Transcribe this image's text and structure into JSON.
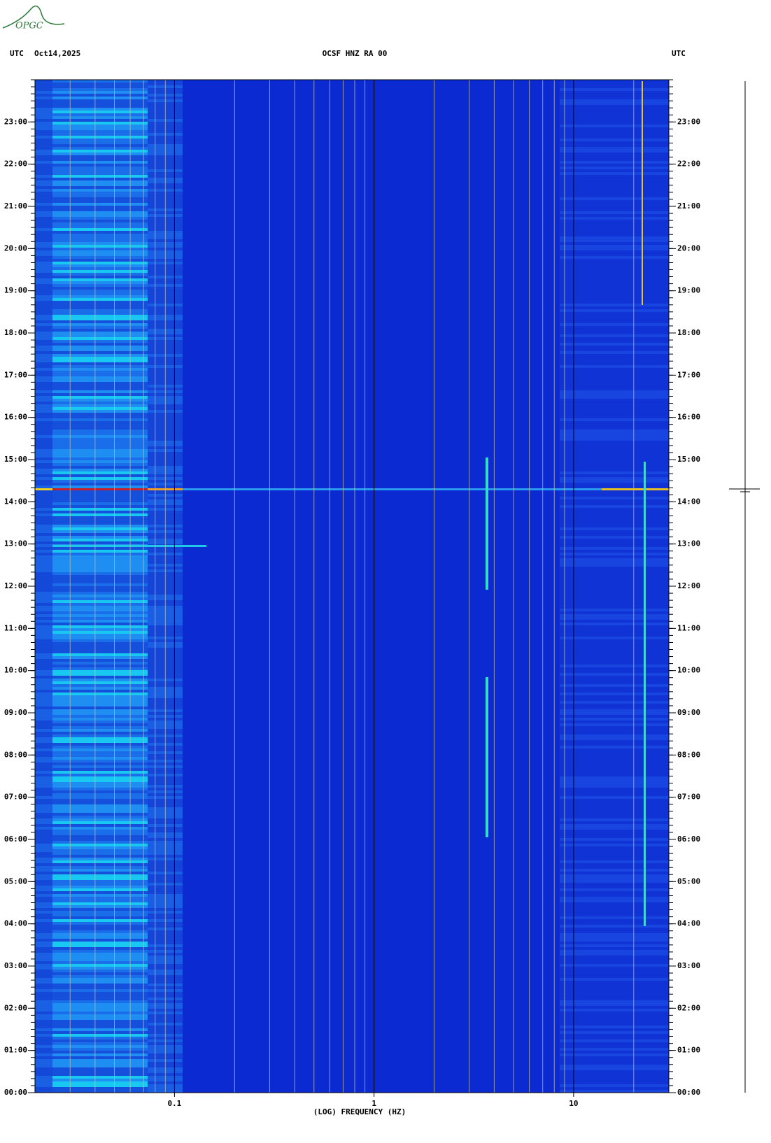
{
  "logo": "OPGC",
  "chart_data": {
    "type": "spectrogram",
    "title": "OCSF HNZ RA 00",
    "timezone_left": "UTC",
    "date": "Oct14,2025",
    "timezone_right": "UTC",
    "x_label": "(LOG) FREQUENCY (HZ)",
    "x_scale": "log",
    "xlim": [
      0.02,
      30
    ],
    "xticks": [
      0.1,
      1,
      10
    ],
    "ylim": [
      0,
      24
    ],
    "yticks": [
      {
        "value": 0,
        "label": "00:00"
      },
      {
        "value": 1,
        "label": "01:00"
      },
      {
        "value": 2,
        "label": "02:00"
      },
      {
        "value": 3,
        "label": "03:00"
      },
      {
        "value": 4,
        "label": "04:00"
      },
      {
        "value": 5,
        "label": "05:00"
      },
      {
        "value": 6,
        "label": "06:00"
      },
      {
        "value": 7,
        "label": "07:00"
      },
      {
        "value": 8,
        "label": "08:00"
      },
      {
        "value": 9,
        "label": "09:00"
      },
      {
        "value": 10,
        "label": "10:00"
      },
      {
        "value": 11,
        "label": "11:00"
      },
      {
        "value": 12,
        "label": "12:00"
      },
      {
        "value": 13,
        "label": "13:00"
      },
      {
        "value": 14,
        "label": "14:00"
      },
      {
        "value": 15,
        "label": "15:00"
      },
      {
        "value": 16,
        "label": "16:00"
      },
      {
        "value": 17,
        "label": "17:00"
      },
      {
        "value": 18,
        "label": "18:00"
      },
      {
        "value": 19,
        "label": "19:00"
      },
      {
        "value": 20,
        "label": "20:00"
      },
      {
        "value": 21,
        "label": "21:00"
      },
      {
        "value": 22,
        "label": "22:00"
      },
      {
        "value": 23,
        "label": "23:00"
      }
    ],
    "grid": true
  }
}
